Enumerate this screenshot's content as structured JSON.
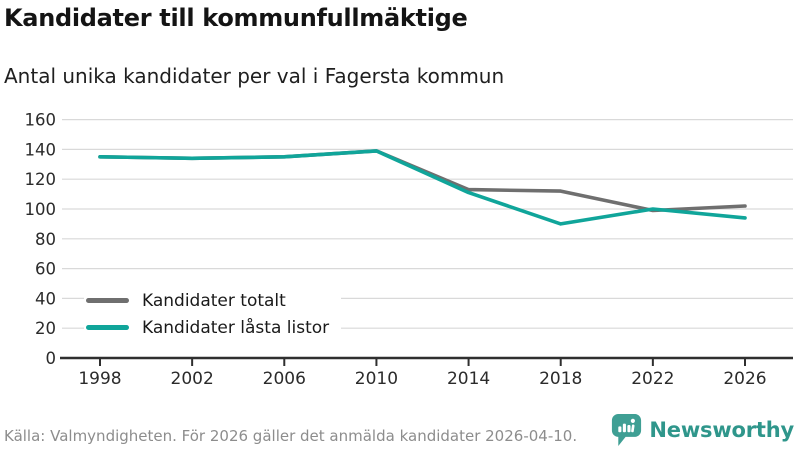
{
  "title": "Kandidater till kommunfullmäktige",
  "subtitle": "Antal unika kandidater per val i Fagersta kommun",
  "footer": {
    "source": "Källa: Valmyndigheten. För 2026 gäller det anmälda kandidater 2026-04-10.",
    "brand": "Newsworthy"
  },
  "colors": {
    "accent_teal": "#10a59a",
    "series_gray": "#6f6f6f",
    "gridline": "#d9d9d9",
    "axis": "#2f2f2f",
    "tick_label": "#2b2b2b",
    "brand_text": "#2f968b",
    "brand_icon": "#3f9f94"
  },
  "chart_data": {
    "type": "line",
    "title": "Kandidater till kommunfullmäktige",
    "subtitle": "Antal unika kandidater per val i Fagersta kommun",
    "x": [
      1998,
      2002,
      2006,
      2010,
      2014,
      2018,
      2022,
      2026
    ],
    "series": [
      {
        "name": "Kandidater totalt",
        "color": "#6f6f6f",
        "values": [
          135,
          134,
          135,
          139,
          113,
          112,
          99,
          102
        ]
      },
      {
        "name": "Kandidater låsta listor",
        "color": "#10a59a",
        "values": [
          135,
          134,
          135,
          139,
          111,
          90,
          100,
          94
        ]
      }
    ],
    "xlabel": "",
    "ylabel": "",
    "ylim": [
      0,
      160
    ],
    "yticks": [
      0,
      20,
      40,
      60,
      80,
      100,
      120,
      140,
      160
    ],
    "grid": true,
    "legend_position": "inside-bottom-left"
  }
}
